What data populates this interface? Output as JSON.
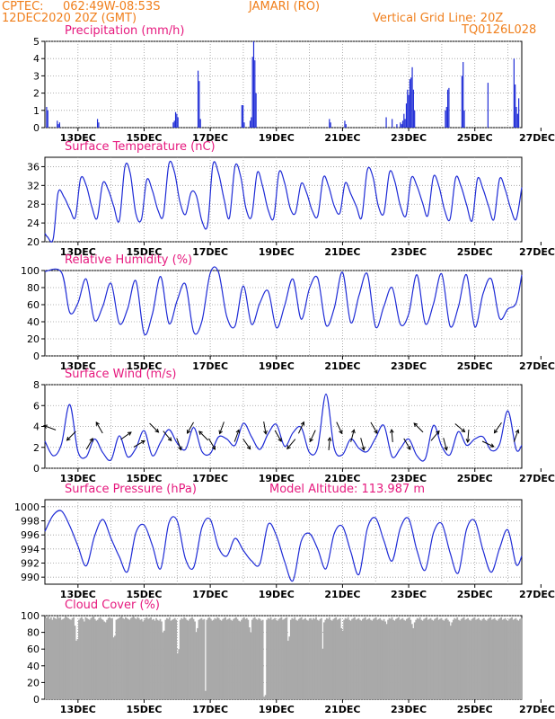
{
  "header": {
    "source": "CPTEC:",
    "coords": "062:49W-08:53S",
    "location": "JAMARI (RO)",
    "run": "12DEC2020 20Z (GMT)",
    "grid_note": "Vertical Grid Line: 20Z",
    "model_code": "TQ0126L028"
  },
  "colors": {
    "header": "#f07f1c",
    "title": "#e6197e",
    "series": "#1e2bd6",
    "cloud": "#a9a9a9",
    "frame": "#000000"
  },
  "x_ticks": [
    "13DEC",
    "15DEC",
    "17DEC",
    "19DEC",
    "21DEC",
    "23DEC",
    "25DEC",
    "27DEC"
  ],
  "chart_data": [
    {
      "type": "bar",
      "title": "Precipitation (mm/h)",
      "ylim": [
        0,
        5
      ],
      "yticks": [
        0,
        1,
        2,
        3,
        4,
        5
      ],
      "grid": true,
      "values": [
        0,
        1.2,
        1,
        0,
        0,
        0,
        0,
        0,
        0,
        0,
        0.4,
        0.2,
        0.3,
        0,
        0,
        0,
        0,
        0,
        0,
        0,
        0,
        0,
        0,
        0,
        0,
        0,
        0,
        0,
        0,
        0,
        0,
        0,
        0,
        0,
        0,
        0,
        0,
        0,
        0,
        0,
        0,
        0,
        0,
        0,
        0.5,
        0.3,
        0,
        0,
        0,
        0,
        0,
        0,
        0,
        0,
        0,
        0,
        0,
        0,
        0,
        0,
        0,
        0,
        0,
        0,
        0,
        0,
        0,
        0,
        0,
        0,
        0,
        0,
        0,
        0,
        0,
        0,
        0,
        0,
        0,
        0,
        0,
        0,
        0,
        0,
        0,
        0,
        0,
        0,
        0,
        0,
        0,
        0,
        0,
        0,
        0,
        0,
        0,
        0,
        0,
        0,
        0,
        0,
        0,
        0,
        0,
        0,
        0,
        0,
        0.3,
        0.4,
        0.9,
        0.8,
        0.6,
        0,
        0,
        0,
        0,
        0,
        0,
        0,
        0,
        0,
        0,
        0,
        0,
        0,
        0,
        0,
        0,
        3.3,
        2.7,
        0.5,
        0,
        0,
        0,
        0,
        0,
        0,
        0,
        0,
        0,
        0,
        0,
        0,
        0,
        0,
        0,
        0,
        0,
        0,
        0,
        0,
        0,
        0,
        0,
        0,
        0,
        0,
        0,
        0,
        0,
        0,
        0,
        0,
        0,
        0,
        1.3,
        1.3,
        0.3,
        0,
        0,
        0,
        0,
        0.4,
        0.6,
        4.1,
        5,
        3.9,
        2,
        0,
        0,
        0,
        0,
        0,
        0,
        0,
        0,
        0,
        0,
        0,
        0,
        0,
        0,
        0,
        0,
        0,
        0,
        0,
        0,
        0,
        0,
        0,
        0,
        0,
        0,
        0,
        0,
        0,
        0,
        0,
        0,
        0,
        0,
        0,
        0,
        0,
        0,
        0,
        0,
        0,
        0,
        0,
        0,
        0,
        0,
        0,
        0,
        0,
        0,
        0,
        0,
        0,
        0,
        0,
        0,
        0,
        0,
        0,
        0,
        0,
        0.5,
        0.3,
        0,
        0,
        0,
        0,
        0,
        0,
        0,
        0,
        0,
        0,
        0,
        0.4,
        0.2,
        0,
        0,
        0,
        0,
        0,
        0,
        0,
        0,
        0,
        0,
        0,
        0,
        0,
        0,
        0,
        0,
        0,
        0,
        0,
        0,
        0,
        0,
        0,
        0,
        0,
        0,
        0,
        0,
        0,
        0,
        0,
        0,
        0,
        0.6,
        0,
        0,
        0,
        0,
        0.5,
        0,
        0,
        0,
        0.2,
        0,
        0,
        0.3,
        0.2,
        0.4,
        0.8,
        0.5,
        1.4,
        2.2,
        1.9,
        2.8,
        2.9,
        3.5,
        2.2,
        1,
        0,
        0,
        0,
        0,
        0,
        0,
        0,
        0,
        0,
        0,
        0,
        0,
        0,
        0,
        0,
        0,
        0,
        0,
        0,
        0,
        0,
        0,
        0,
        0,
        0,
        1,
        1.2,
        2.2,
        2.3,
        0,
        0,
        0,
        0,
        0,
        0,
        0,
        0,
        0,
        0,
        3,
        3.8,
        1,
        0,
        0,
        0,
        0,
        0,
        0,
        0,
        0,
        0,
        0,
        0,
        0,
        0,
        0,
        0,
        0,
        0,
        0,
        0,
        2.6,
        0,
        0,
        0,
        0,
        0,
        0,
        0,
        0,
        0,
        0,
        0,
        0,
        0,
        0,
        0,
        0,
        0,
        0,
        0,
        0,
        0,
        4,
        2.5,
        1.2,
        0.8,
        1.7,
        0,
        0
      ]
    },
    {
      "type": "line",
      "title": "Surface Temperature (nC)",
      "ylim": [
        20,
        38
      ],
      "yticks": [
        20,
        24,
        28,
        32,
        36
      ],
      "grid": true,
      "x": [
        0,
        0.08,
        0.25,
        0.4,
        0.58,
        0.75,
        0.92,
        1.08,
        1.25,
        1.42,
        1.58,
        1.75,
        1.92,
        2.08,
        2.25,
        2.42,
        2.58,
        2.75,
        2.92,
        3.08,
        3.25,
        3.42,
        3.58,
        3.75,
        3.92,
        4.08,
        4.25,
        4.42,
        4.58,
        4.75,
        4.92,
        5.08,
        5.25,
        5.42,
        5.58,
        5.75,
        5.92,
        6.08,
        6.25,
        6.42,
        6.58,
        6.75,
        6.92,
        7.08,
        7.25,
        7.42,
        7.58,
        7.75,
        7.92,
        8.08,
        8.25,
        8.42,
        8.58,
        8.75,
        8.92,
        9.08,
        9.25,
        9.42,
        9.58,
        9.75,
        9.92,
        10.08,
        10.25,
        10.42,
        10.58,
        10.75,
        10.92,
        11.08,
        11.25,
        11.42,
        11.58,
        11.75,
        11.92,
        12.08,
        12.25,
        12.42,
        12.58,
        12.75,
        12.92,
        13.08,
        13.25,
        13.42,
        13.58,
        13.75,
        13.92,
        14.08,
        14.25,
        14.42
      ],
      "values": [
        21.8,
        21.0,
        20.6,
        30.5,
        29.5,
        27.0,
        25.2,
        33.5,
        32.0,
        27.4,
        25.0,
        32.5,
        31.0,
        27.6,
        24.5,
        36.0,
        34.6,
        26.0,
        24.8,
        33.2,
        30.9,
        26.7,
        25.6,
        36.6,
        34.8,
        28.6,
        25.8,
        30.5,
        29.8,
        24.4,
        23.6,
        36.4,
        34.6,
        29.0,
        25.1,
        36.1,
        33.9,
        27.1,
        25.4,
        34.7,
        31.9,
        26.8,
        25.1,
        34.8,
        32.5,
        27.1,
        26.2,
        32.4,
        30.3,
        26.7,
        25.5,
        33.7,
        31.8,
        27.6,
        26.1,
        32.5,
        30.2,
        27.5,
        25.2,
        35.3,
        33.8,
        27.7,
        26.1,
        34.8,
        32.9,
        27.6,
        25.6,
        33.6,
        31.9,
        28.3,
        25.6,
        33.9,
        31.7,
        26.9,
        24.8,
        33.6,
        31.9,
        27.9,
        24.5,
        33.4,
        31.2,
        27.5,
        24.8,
        33.4,
        31.1,
        27.2,
        24.8,
        31.6
      ]
    },
    {
      "type": "line",
      "title": "Relative Humidity (%)",
      "ylim": [
        0,
        100
      ],
      "yticks": [
        0,
        20,
        40,
        60,
        80,
        100
      ],
      "grid": true,
      "x": [
        0,
        0.5,
        0.75,
        1.0,
        1.25,
        1.5,
        1.75,
        2.0,
        2.25,
        2.5,
        2.75,
        3.0,
        3.25,
        3.5,
        3.75,
        4.0,
        4.25,
        4.5,
        4.75,
        5.0,
        5.25,
        5.5,
        5.75,
        6.0,
        6.25,
        6.5,
        6.75,
        7.0,
        7.25,
        7.5,
        7.75,
        8.0,
        8.25,
        8.5,
        8.75,
        9.0,
        9.25,
        9.5,
        9.75,
        10.0,
        10.25,
        10.5,
        10.75,
        11.0,
        11.25,
        11.5,
        11.75,
        12.0,
        12.25,
        12.5,
        12.75,
        13.0,
        13.25,
        13.5,
        13.75,
        14.0,
        14.25,
        14.42
      ],
      "values": [
        99,
        98,
        51,
        62,
        90,
        42,
        58,
        85,
        38,
        55,
        88,
        26,
        49,
        93,
        38,
        65,
        84,
        28,
        41,
        97,
        98,
        46,
        35,
        82,
        37,
        62,
        76,
        33,
        59,
        90,
        43,
        79,
        91,
        36,
        56,
        98,
        39,
        71,
        96,
        34,
        58,
        80,
        37,
        49,
        95,
        38,
        61,
        96,
        35,
        57,
        95,
        34,
        73,
        90,
        44,
        55,
        62,
        95
      ]
    },
    {
      "type": "line",
      "title": "Surface Wind (m/s)",
      "ylim": [
        0,
        8
      ],
      "yticks": [
        0,
        2,
        4,
        6,
        8
      ],
      "grid": true,
      "x": [
        0,
        0.25,
        0.5,
        0.75,
        1.0,
        1.25,
        1.5,
        1.75,
        2.0,
        2.25,
        2.5,
        2.75,
        3.0,
        3.25,
        3.5,
        3.75,
        4.0,
        4.25,
        4.5,
        4.75,
        5.0,
        5.25,
        5.5,
        5.75,
        6.0,
        6.25,
        6.5,
        6.75,
        7.0,
        7.25,
        7.5,
        7.75,
        8.0,
        8.25,
        8.5,
        8.75,
        9.0,
        9.25,
        9.5,
        9.75,
        10.0,
        10.25,
        10.5,
        10.75,
        11.0,
        11.25,
        11.5,
        11.75,
        12.0,
        12.25,
        12.5,
        12.75,
        13.0,
        13.25,
        13.5,
        13.75,
        14.0,
        14.25,
        14.42
      ],
      "values": [
        2.6,
        1.2,
        2.3,
        6.1,
        1.6,
        1.1,
        2.8,
        1.5,
        0.8,
        3.1,
        1.1,
        1.9,
        3.6,
        1.2,
        2.5,
        3.7,
        2.4,
        1.8,
        3.9,
        1.6,
        1.4,
        3.0,
        2.8,
        2.2,
        4.3,
        3.0,
        1.8,
        3.3,
        4.2,
        2.1,
        3.4,
        3.9,
        1.5,
        2.0,
        7.1,
        1.9,
        1.3,
        2.8,
        1.9,
        1.6,
        2.9,
        4.1,
        1.1,
        1.9,
        2.8,
        1.2,
        0.9,
        4.1,
        2.1,
        1.3,
        3.5,
        2.2,
        2.8,
        3.0,
        1.7,
        2.3,
        5.5,
        1.8,
        2.2
      ],
      "arrow_x": [
        0.15,
        0.8,
        1.35,
        1.65,
        2.45,
        2.85,
        3.3,
        3.7,
        4.05,
        4.4,
        4.8,
        5.05,
        5.35,
        5.8,
        6.1,
        6.65,
        7.05,
        7.45,
        7.75,
        8.1,
        8.6,
        8.9,
        9.3,
        9.6,
        9.95,
        10.5,
        10.95,
        11.3,
        11.8,
        12.1,
        12.55,
        12.8,
        13.4,
        13.7,
        14.25
      ],
      "arrow_dir": [
        160,
        225,
        60,
        120,
        35,
        30,
        315,
        310,
        290,
        240,
        135,
        300,
        250,
        70,
        305,
        280,
        300,
        230,
        65,
        245,
        85,
        295,
        75,
        285,
        300,
        95,
        300,
        135,
        50,
        285,
        320,
        265,
        335,
        235,
        70
      ]
    },
    {
      "type": "line",
      "title": "Surface Pressure (hPa)",
      "annotation": "Model Altitude: 113.987 m",
      "ylim": [
        989,
        1001
      ],
      "yticks": [
        990,
        992,
        994,
        996,
        998,
        1000
      ],
      "grid": true,
      "x": [
        0,
        0.25,
        0.5,
        0.75,
        1.0,
        1.25,
        1.5,
        1.75,
        2.0,
        2.25,
        2.5,
        2.75,
        3.0,
        3.25,
        3.5,
        3.75,
        4.0,
        4.25,
        4.5,
        4.75,
        5.0,
        5.25,
        5.5,
        5.75,
        6.0,
        6.25,
        6.5,
        6.75,
        7.0,
        7.25,
        7.5,
        7.75,
        8.0,
        8.25,
        8.5,
        8.75,
        9.0,
        9.25,
        9.5,
        9.75,
        10.0,
        10.25,
        10.5,
        10.75,
        11.0,
        11.25,
        11.5,
        11.75,
        12.0,
        12.25,
        12.5,
        12.75,
        13.0,
        13.25,
        13.5,
        13.75,
        14.0,
        14.25,
        14.42
      ],
      "values": [
        996.5,
        998.8,
        999.4,
        997.3,
        994.4,
        991.6,
        995.8,
        998.2,
        995.5,
        992.9,
        990.8,
        996.3,
        997.4,
        994.5,
        991.2,
        997.7,
        998.0,
        992.6,
        991.4,
        997.1,
        998.2,
        994.2,
        993.0,
        995.5,
        993.8,
        992.3,
        991.9,
        997.5,
        995.9,
        992.2,
        989.5,
        995.1,
        996.2,
        994.0,
        991.2,
        996.2,
        997.2,
        993.6,
        990.4,
        996.9,
        998.4,
        995.2,
        992.3,
        997.0,
        998.3,
        993.8,
        991.0,
        996.3,
        997.6,
        993.5,
        990.6,
        996.8,
        998.0,
        993.8,
        990.7,
        994.1,
        996.7,
        991.8,
        993.0
      ]
    },
    {
      "type": "area",
      "title": "Cloud Cover (%)",
      "ylim": [
        0,
        100
      ],
      "yticks": [
        0,
        20,
        40,
        60,
        80,
        100
      ],
      "grid": true,
      "values": [
        97,
        98,
        99,
        96,
        98,
        95,
        98,
        97,
        96,
        99,
        97,
        98,
        95,
        96,
        97,
        99,
        98,
        97,
        96,
        95,
        97,
        98,
        88,
        70,
        72,
        95,
        97,
        98,
        96,
        93,
        98,
        97,
        96,
        95,
        97,
        98,
        99,
        96,
        94,
        95,
        97,
        98,
        96,
        95,
        93,
        92,
        95,
        97,
        98,
        96,
        97,
        74,
        76,
        95,
        96,
        97,
        98,
        99,
        97,
        96,
        98,
        97,
        96,
        95,
        97,
        98,
        99,
        97,
        96,
        98,
        97,
        95,
        96,
        93,
        95,
        97,
        98,
        96,
        97,
        98,
        95,
        96,
        94,
        97,
        95,
        94,
        96,
        93,
        80,
        82,
        95,
        97,
        96,
        98,
        94,
        95,
        96,
        97,
        95,
        55,
        60,
        95,
        97,
        96,
        98,
        97,
        95,
        94,
        96,
        97,
        98,
        96,
        93,
        80,
        85,
        95,
        96,
        97,
        95,
        96,
        10,
        95,
        97,
        98,
        96,
        94,
        95,
        97,
        96,
        98,
        97,
        95,
        94,
        96,
        97,
        98,
        95,
        96,
        97,
        95,
        94,
        96,
        97,
        98,
        96,
        94,
        93,
        95,
        97,
        98,
        96,
        97,
        95,
        86,
        80,
        95,
        97,
        98,
        96,
        95,
        97,
        96,
        94,
        95,
        3,
        5,
        95,
        97,
        96,
        98,
        95,
        96,
        97,
        95,
        94,
        96,
        97,
        98,
        95,
        96,
        97,
        98,
        70,
        75,
        95,
        97,
        96,
        98,
        95,
        94,
        96,
        97,
        98,
        95,
        96,
        97,
        95,
        94,
        96,
        97,
        95,
        97,
        96,
        98,
        95,
        94,
        96,
        97,
        60,
        92,
        95,
        97,
        96,
        98,
        95,
        94,
        96,
        97,
        98,
        95,
        96,
        97,
        85,
        82,
        95,
        97,
        96,
        98,
        95,
        94,
        96,
        97,
        98,
        95,
        96,
        97,
        95,
        94,
        96,
        97,
        98,
        95,
        96,
        97,
        95,
        94,
        96,
        97,
        98,
        95,
        96,
        97,
        95,
        94,
        96,
        93,
        90,
        95,
        97,
        96,
        98,
        95,
        94,
        96,
        97,
        98,
        95,
        96,
        97,
        95,
        94,
        96,
        97,
        98,
        95,
        90,
        85,
        92,
        95,
        97,
        96,
        98,
        95,
        94,
        96,
        97,
        98,
        95,
        96,
        97,
        95,
        94,
        96,
        97,
        98,
        95,
        96,
        97,
        95,
        94,
        96,
        97,
        95,
        93,
        88,
        92,
        95,
        97,
        96,
        98,
        95,
        94,
        96,
        97,
        98,
        95,
        96,
        97,
        95,
        94,
        96,
        97,
        98,
        95,
        96,
        97,
        95,
        94,
        96,
        97,
        95,
        94,
        96,
        97,
        98,
        95,
        96,
        97,
        95,
        94,
        96,
        97,
        98,
        95,
        96,
        97,
        95,
        94,
        96,
        97,
        98,
        95,
        96,
        97,
        95,
        94,
        96,
        97
      ]
    }
  ]
}
